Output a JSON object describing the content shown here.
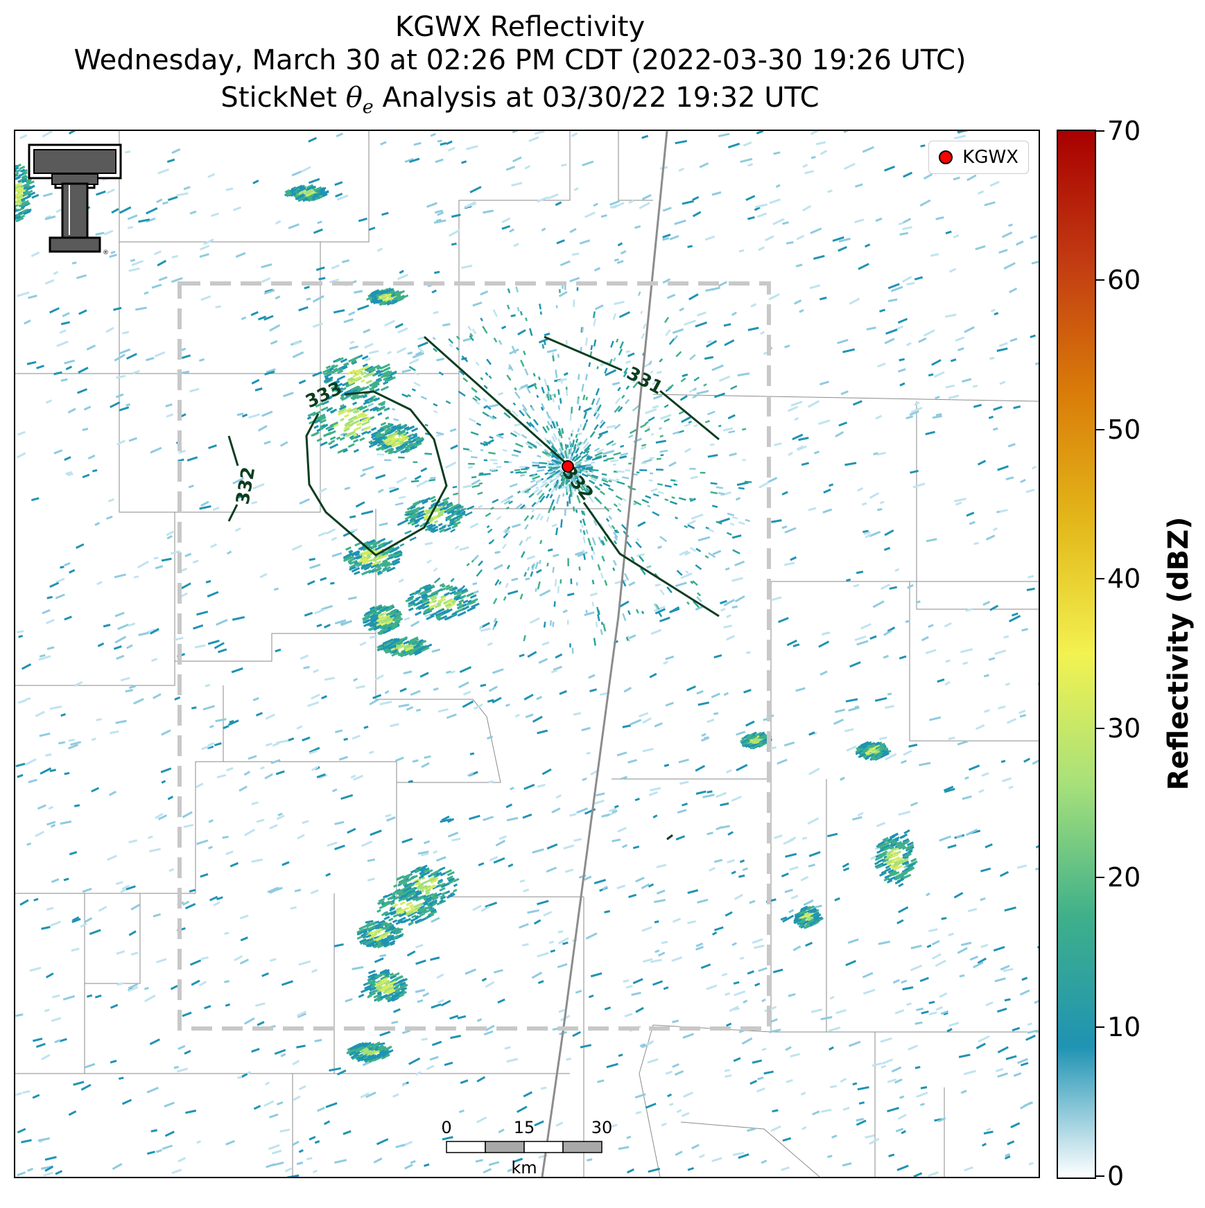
{
  "header": {
    "line1": "KGWX Reflectivity",
    "line2": "Wednesday, March 30 at 02:26 PM CDT (2022-03-30 19:26 UTC)",
    "line3_prefix": "StickNet",
    "line3_symbol": "θ",
    "line3_subscript": "e",
    "line3_suffix": "Analysis at 03/30/22 19:32 UTC"
  },
  "legend": {
    "label": "KGWX",
    "marker_color": "#ff0000"
  },
  "logo": {
    "name": "texas-tech-double-t-logo",
    "lettering": "®"
  },
  "contours": {
    "color": "#0b3d1f",
    "labels": [
      "333",
      "332",
      "332",
      "331"
    ]
  },
  "scalebar": {
    "ticks": [
      "0",
      "15",
      "30"
    ],
    "unit": "km"
  },
  "colorbar": {
    "label": "Reflectivity (dBZ)",
    "min": 0,
    "max": 70,
    "ticks": [
      "70",
      "60",
      "50",
      "40",
      "30",
      "20",
      "10",
      "0"
    ],
    "colors": [
      "#ffffff",
      "#1f93b3",
      "#3fb08a",
      "#a6e07a",
      "#f2f251",
      "#e3b81a",
      "#d97c09",
      "#c23b12",
      "#a80000"
    ]
  },
  "colors": {
    "analysis_box": "#c8c8c8",
    "county_lines": "#8a8a8a",
    "highway": "#8c8c8c"
  }
}
